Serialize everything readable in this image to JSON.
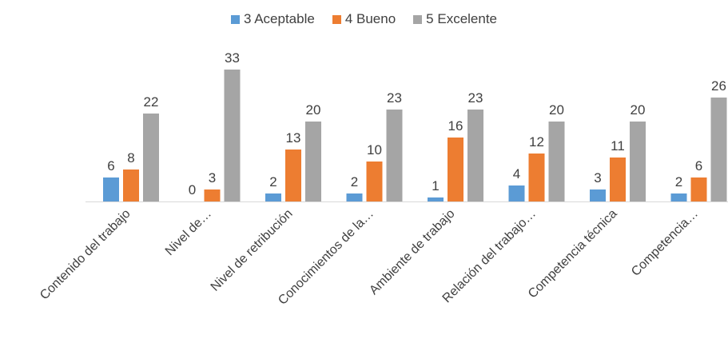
{
  "chart_data": {
    "type": "bar",
    "title": "",
    "xlabel": "",
    "ylabel": "",
    "ylim": [
      0,
      33
    ],
    "grid": false,
    "legend_position": "top",
    "categories": [
      "Contenido del trabajo",
      "Nivel de…",
      "Nivel de retribución",
      "Conocimientos de la…",
      "Ambiente de trabajo",
      "Relación del trabajo…",
      "Competencia técnica",
      "Competencia…"
    ],
    "series": [
      {
        "name": "3 Aceptable",
        "color": "#5b9bd5",
        "values": [
          6,
          0,
          2,
          2,
          1,
          4,
          3,
          2
        ]
      },
      {
        "name": "4 Bueno",
        "color": "#ed7d31",
        "values": [
          8,
          3,
          13,
          10,
          16,
          12,
          11,
          6
        ]
      },
      {
        "name": "5 Excelente",
        "color": "#a5a5a5",
        "values": [
          22,
          33,
          20,
          23,
          23,
          20,
          20,
          26
        ]
      }
    ]
  }
}
